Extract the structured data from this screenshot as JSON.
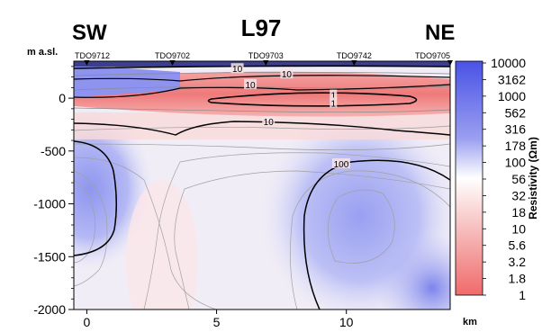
{
  "chart_data": {
    "type": "heatmap",
    "title": "L97",
    "left_label": "SW",
    "right_label": "NE",
    "ylabel": "m a.sl.",
    "xlabel": "km",
    "colorbar_label": "Resistivity (Ωm)",
    "xlim": [
      -0.5,
      14.0
    ],
    "ylim": [
      -2000,
      350
    ],
    "x_ticks": [
      0,
      5,
      10
    ],
    "y_ticks": [
      0,
      -500,
      -1000,
      -1500,
      -2000
    ],
    "colorbar_ticks": [
      "10000",
      "3162",
      "1000",
      "562",
      "316",
      "178",
      "100",
      "56",
      "32",
      "18",
      "10",
      "5.6",
      "3.2",
      "1.8",
      "1"
    ],
    "colorbar_colors": {
      "high": "#4a52e6",
      "mid": "#ffffff",
      "low": "#f06a6a"
    },
    "stations": [
      {
        "name": "TDO9712",
        "x": 0.0
      },
      {
        "name": "TDO9702",
        "x": 3.3
      },
      {
        "name": "TDO9703",
        "x": 6.9
      },
      {
        "name": "TDO9742",
        "x": 10.3
      },
      {
        "name": "TDO9705",
        "x": 14.0
      }
    ],
    "contour_labels": [
      {
        "text": "10",
        "x": 5.8,
        "y": 280
      },
      {
        "text": "10",
        "x": 7.7,
        "y": 230
      },
      {
        "text": "10",
        "x": 6.3,
        "y": 130
      },
      {
        "text": "1",
        "x": 9.5,
        "y": 30
      },
      {
        "text": "1",
        "x": 9.5,
        "y": -45
      },
      {
        "text": "10",
        "x": 7.0,
        "y": -220
      },
      {
        "text": "100",
        "x": 9.8,
        "y": -620
      }
    ]
  }
}
